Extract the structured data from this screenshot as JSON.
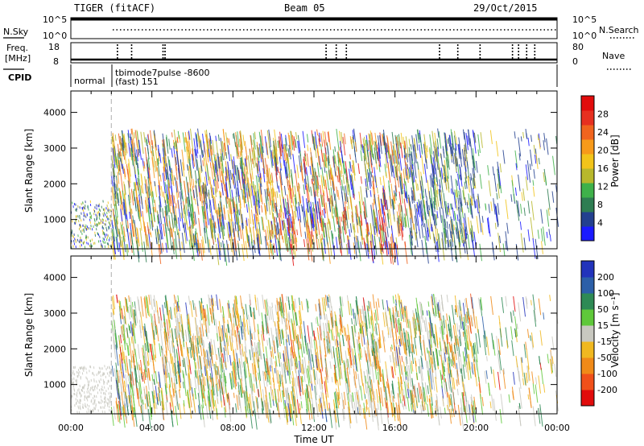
{
  "header": {
    "radar_title": "TIGER (fitACF)",
    "beam": "Beam 05",
    "date": "29/Oct/2015"
  },
  "strips": {
    "nsky_label": "N.Sky",
    "nsky_ticks": [
      "10^5",
      "10^0"
    ],
    "nsearch_label": "N.Search",
    "nsearch_ticks": [
      "10^5",
      "10^0"
    ],
    "freq_label_1": "Freq.",
    "freq_label_2": "[MHz]",
    "freq_ticks": [
      "18",
      "8"
    ],
    "nave_label": "Nave",
    "nave_ticks": [
      "80",
      "0"
    ],
    "cpid_label": "CPID",
    "cpid_segments": [
      {
        "name": "normal",
        "hours": [
          0,
          2.0
        ]
      },
      {
        "name": "tbimode7pulse -8600",
        "hours": [
          2.0,
          24
        ]
      }
    ],
    "cpid_extra": "(fast) 151",
    "nave_spike_hours": [
      2.3,
      3.0,
      4.55,
      4.65,
      12.6,
      13.1,
      13.6,
      18.2,
      19.1,
      20.2,
      21.8,
      22.1,
      22.5,
      22.9
    ]
  },
  "chart_data": [
    {
      "type": "heatmap",
      "title": "Power",
      "ylabel": "Slant Range [km]",
      "xlabel": "Time UT",
      "xlim": [
        0,
        24
      ],
      "ylim": [
        180,
        4600
      ],
      "y_ticks": [
        1000,
        2000,
        3000,
        4000
      ],
      "x_ticks": [
        "00:00",
        "04:00",
        "08:00",
        "12:00",
        "16:00",
        "20:00",
        "00:00"
      ],
      "colorbar_label": "Power [dB]",
      "colorbar_ticks": [
        "4",
        "8",
        "12",
        "16",
        "20",
        "24",
        "28"
      ],
      "colorbar_colors": [
        "#1a1aff",
        "#23408f",
        "#2e7d52",
        "#3fb14a",
        "#b8b82c",
        "#f2c41a",
        "#f79a1a",
        "#f0641e",
        "#e63020",
        "#e10c0c"
      ],
      "segments": [
        {
          "hours": [
            0,
            2.0
          ],
          "range_km": [
            250,
            1550
          ],
          "dominant": "mixed green/yellow/blue"
        },
        {
          "hours": [
            2.0,
            24
          ],
          "range_km": [
            300,
            3550
          ],
          "dominant": "green/orange/blue streaks"
        }
      ]
    },
    {
      "type": "heatmap",
      "title": "Velocity",
      "ylabel": "Slant Range [km]",
      "xlabel": "Time UT",
      "xlim": [
        0,
        24
      ],
      "ylim": [
        180,
        4600
      ],
      "y_ticks": [
        1000,
        2000,
        3000,
        4000
      ],
      "x_ticks": [
        "00:00",
        "04:00",
        "08:00",
        "12:00",
        "16:00",
        "20:00",
        "00:00"
      ],
      "colorbar_label": "Velocity [m s⁻¹]",
      "colorbar_ticks": [
        "200",
        "100",
        "50",
        "15",
        "-15",
        "-50",
        "-100",
        "-200"
      ],
      "colorbar_colors": [
        "#2233bb",
        "#2c5fa8",
        "#2e8a55",
        "#5fc83a",
        "#c8c8c0",
        "#f0b820",
        "#f08a18",
        "#f0501a",
        "#e10c0c"
      ],
      "segments": [
        {
          "hours": [
            0,
            2.0
          ],
          "range_km": [
            250,
            1550
          ],
          "dominant": "gray ground scatter"
        },
        {
          "hours": [
            2.0,
            24
          ],
          "range_km": [
            300,
            3550
          ],
          "dominant": "yellow/green/blue streaks"
        }
      ]
    }
  ]
}
